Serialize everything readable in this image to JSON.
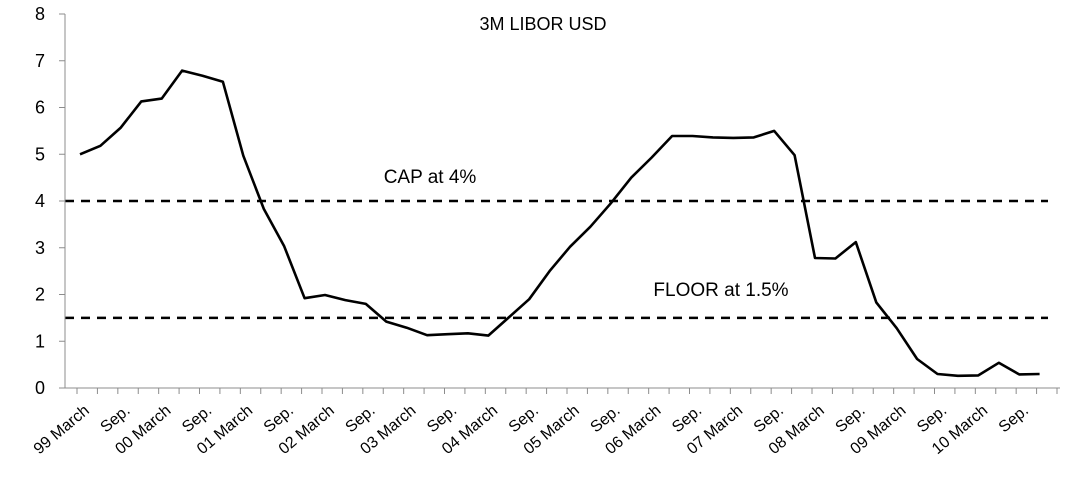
{
  "chart_data": {
    "type": "line",
    "title": "3M LIBOR USD",
    "xlabel": "",
    "ylabel": "",
    "ylim": [
      0,
      8
    ],
    "yticks": [
      0,
      1,
      2,
      3,
      4,
      5,
      6,
      7,
      8
    ],
    "grid": false,
    "x_tick_labels": [
      "99 March",
      "Sep.",
      "00 March",
      "Sep.",
      "01 March",
      "Sep.",
      "02 March",
      "Sep.",
      "03 March",
      "Sep.",
      "04 March",
      "Sep.",
      "05 March",
      "Sep.",
      "06 March",
      "Sep.",
      "07 March",
      "Sep.",
      "08 March",
      "Sep.",
      "09 March",
      "Sep.",
      "10 March",
      "Sep."
    ],
    "series": [
      {
        "name": "",
        "color": "#000000",
        "values": [
          5.0,
          5.18,
          5.57,
          6.13,
          6.19,
          6.79,
          6.68,
          6.55,
          4.97,
          3.83,
          3.03,
          1.92,
          1.99,
          1.88,
          1.8,
          1.42,
          1.29,
          1.13,
          1.15,
          1.17,
          1.12,
          1.51,
          1.9,
          2.5,
          3.02,
          3.45,
          3.95,
          4.5,
          4.93,
          5.39,
          5.39,
          5.36,
          5.35,
          5.36,
          5.5,
          4.98,
          2.78,
          2.77,
          3.12,
          1.83,
          1.28,
          0.62,
          0.3,
          0.26,
          0.27,
          0.54,
          0.29,
          0.3
        ]
      }
    ],
    "reference_lines": [
      {
        "label": "CAP at 4%",
        "value": 4,
        "style": "dashed"
      },
      {
        "label": "FLOOR at 1.5%",
        "value": 1.5,
        "style": "dashed"
      }
    ]
  }
}
